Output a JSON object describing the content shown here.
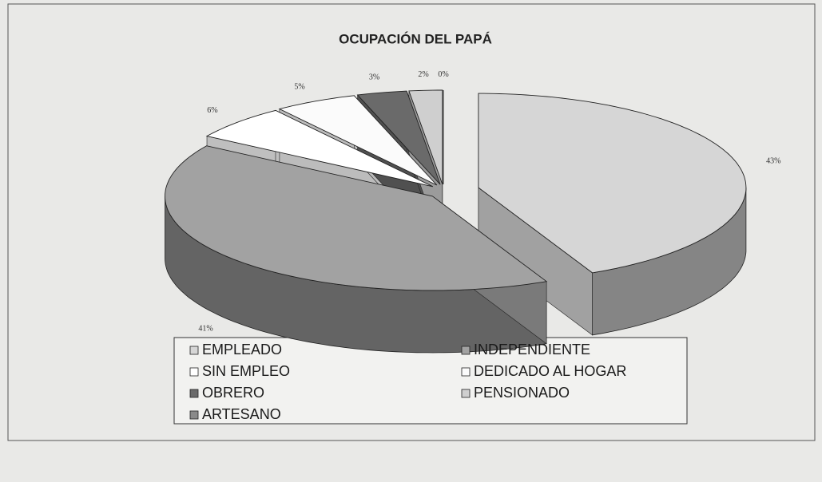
{
  "chart_data": {
    "type": "pie3d",
    "title": "OCUPACIÓN DEL PAPÁ",
    "categories": [
      "EMPLEADO",
      "INDEPENDIENTE",
      "SIN EMPLEO",
      "DEDICADO AL HOGAR",
      "OBRERO",
      "PENSIONADO",
      "ARTESANO"
    ],
    "values": [
      43,
      41,
      6,
      5,
      3,
      2,
      0
    ],
    "value_labels": [
      "43%",
      "41%",
      "6%",
      "5%",
      "3%",
      "2%",
      "0%"
    ],
    "colors": [
      "#d6d6d6",
      "#a2a2a2",
      "#ffffff",
      "#fbfbfb",
      "#6a6a6a",
      "#cfcfcf",
      "#8a8a8a"
    ],
    "legend": "bottom"
  }
}
